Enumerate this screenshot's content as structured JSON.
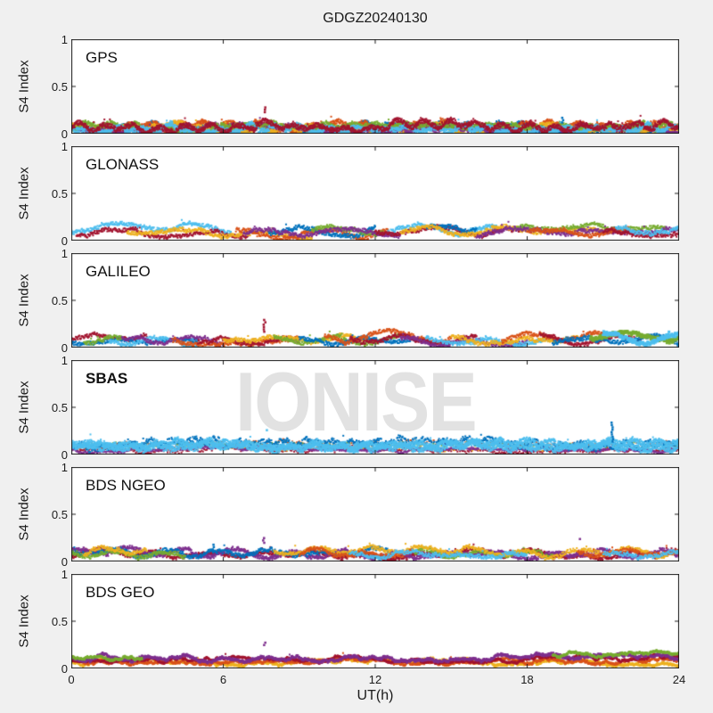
{
  "watermark": "IONISE",
  "colors": {
    "blue": "#0072BD",
    "orange": "#D95319",
    "yellow": "#EDB120",
    "purple": "#7E2F8E",
    "green": "#77AC30",
    "lightblue": "#4DBEEE",
    "darkred": "#A2142F",
    "figure_background": "#f0f0f0",
    "panel_background": "#ffffff",
    "axis": "#1a1a1a",
    "watermark_color": "#e2e2e2"
  },
  "chart_data": {
    "type": "scatter",
    "title": "GDGZ20240130",
    "xlabel": "UT(h)",
    "ylabel": "S4 Index",
    "xlim": [
      0,
      24
    ],
    "ylim": [
      0,
      1
    ],
    "xticks": [
      0,
      6,
      12,
      18,
      24
    ],
    "xtick_labels": [
      "0",
      "6",
      "12",
      "18",
      "24"
    ],
    "yticks": [
      0,
      0.5,
      1
    ],
    "ytick_labels": [
      "1",
      "0.5",
      "0"
    ],
    "grid": false,
    "legend": "none",
    "panels": [
      {
        "label": "GPS",
        "bold": false,
        "series": [
          {
            "c": "blue",
            "r": [
              0,
              24
            ],
            "b": 0.06,
            "a": 0.02,
            "j": 0.05,
            "st": 0.012,
            "f": 6
          },
          {
            "c": "orange",
            "r": [
              0,
              24
            ],
            "b": 0.07,
            "a": 0.025,
            "j": 0.05,
            "st": 0.012,
            "f": 6
          },
          {
            "c": "yellow",
            "r": [
              0,
              24
            ],
            "b": 0.065,
            "a": 0.02,
            "j": 0.05,
            "st": 0.012,
            "f": 6
          },
          {
            "c": "purple",
            "r": [
              0,
              24
            ],
            "b": 0.05,
            "a": 0.015,
            "j": 0.04,
            "st": 0.014,
            "f": 6
          },
          {
            "c": "green",
            "r": [
              0,
              24
            ],
            "b": 0.06,
            "a": 0.02,
            "j": 0.05,
            "st": 0.014,
            "f": 6
          },
          {
            "c": "lightblue",
            "r": [
              0,
              24
            ],
            "b": 0.055,
            "a": 0.02,
            "j": 0.05,
            "st": 0.012,
            "f": 6
          },
          {
            "c": "darkred",
            "r": [
              0,
              24
            ],
            "b": 0.075,
            "a": 0.03,
            "j": 0.05,
            "st": 0.012,
            "f": 6,
            "pk": 0.015
          }
        ],
        "spikes": [
          {
            "h": 7.62,
            "v": [
              0.23,
              0.28
            ],
            "c": "darkred"
          },
          {
            "h": 19.4,
            "v": [
              0.12,
              0.17
            ],
            "c": "blue"
          }
        ]
      },
      {
        "label": "GLONASS",
        "bold": false,
        "series": [
          {
            "c": "lightblue",
            "r": [
              0,
              6.3
            ],
            "b": 0.13,
            "a": 0.035,
            "f": 2.0
          },
          {
            "c": "darkred",
            "r": [
              0.2,
              7
            ],
            "b": 0.08,
            "a": 0.03,
            "f": 2.0
          },
          {
            "c": "yellow",
            "r": [
              2.2,
              9.5
            ],
            "b": 0.075,
            "a": 0.03,
            "f": 2.0
          },
          {
            "c": "orange",
            "r": [
              6.5,
              12.5
            ],
            "b": 0.08,
            "a": 0.035,
            "f": 2.0
          },
          {
            "c": "blue",
            "r": [
              7.8,
              12
            ],
            "b": 0.11,
            "a": 0.03,
            "f": 2.2
          },
          {
            "c": "green",
            "r": [
              9.5,
              12.3
            ],
            "b": 0.13,
            "a": 0.03,
            "f": 2.2
          },
          {
            "c": "purple",
            "r": [
              6.8,
              13
            ],
            "b": 0.07,
            "a": 0.025,
            "f": 2.0
          },
          {
            "c": "lightblue",
            "r": [
              12.5,
              16.8
            ],
            "b": 0.11,
            "a": 0.04,
            "f": 2.0
          },
          {
            "c": "darkred",
            "r": [
              12,
              18
            ],
            "b": 0.08,
            "a": 0.03,
            "f": 2.0
          },
          {
            "c": "blue",
            "r": [
              14,
              16
            ],
            "b": 0.12,
            "a": 0.03,
            "f": 2.2
          },
          {
            "c": "yellow",
            "r": [
              13,
              21
            ],
            "b": 0.09,
            "a": 0.035,
            "f": 2.0
          },
          {
            "c": "green",
            "r": [
              17.5,
              23.5
            ],
            "b": 0.12,
            "a": 0.03,
            "f": 2.0
          },
          {
            "c": "purple",
            "r": [
              16,
              24
            ],
            "b": 0.08,
            "a": 0.03,
            "f": 2.0
          },
          {
            "c": "orange",
            "r": [
              18,
              22
            ],
            "b": 0.09,
            "a": 0.03,
            "f": 2.0
          },
          {
            "c": "darkred",
            "r": [
              21,
              24
            ],
            "b": 0.09,
            "a": 0.03,
            "f": 2.0
          },
          {
            "c": "lightblue",
            "r": [
              21.5,
              24
            ],
            "b": 0.11,
            "a": 0.03,
            "f": 2.0
          }
        ],
        "spikes": []
      },
      {
        "label": "GALILEO",
        "bold": false,
        "series": [
          {
            "c": "darkred",
            "r": [
              0,
              3
            ],
            "b": 0.09,
            "a": 0.025,
            "f": 2.5
          },
          {
            "c": "blue",
            "r": [
              0,
              5
            ],
            "b": 0.06,
            "a": 0.02,
            "f": 2.5
          },
          {
            "c": "green",
            "r": [
              0.5,
              2
            ],
            "b": 0.07,
            "a": 0.02,
            "f": 2.5
          },
          {
            "c": "lightblue",
            "r": [
              1.5,
              5
            ],
            "b": 0.08,
            "a": 0.04,
            "f": 2.2
          },
          {
            "c": "purple",
            "r": [
              2,
              6
            ],
            "b": 0.07,
            "a": 0.025,
            "f": 2.5
          },
          {
            "c": "orange",
            "r": [
              4,
              9
            ],
            "b": 0.06,
            "a": 0.02,
            "f": 2.5
          },
          {
            "c": "darkred",
            "r": [
              5,
              9
            ],
            "b": 0.07,
            "a": 0.025,
            "f": 2.5
          },
          {
            "c": "yellow",
            "r": [
              6,
              12
            ],
            "b": 0.07,
            "a": 0.025,
            "f": 2.5
          },
          {
            "c": "green",
            "r": [
              8,
              13
            ],
            "b": 0.1,
            "a": 0.04,
            "f": 2.2
          },
          {
            "c": "blue",
            "r": [
              9,
              14
            ],
            "b": 0.07,
            "a": 0.025,
            "f": 2.5
          },
          {
            "c": "orange",
            "r": [
              10,
              15
            ],
            "b": 0.1,
            "a": 0.05,
            "f": 2.0
          },
          {
            "c": "darkred",
            "r": [
              11,
              16
            ],
            "b": 0.09,
            "a": 0.035,
            "f": 2.2
          },
          {
            "c": "purple",
            "r": [
              13,
              18
            ],
            "b": 0.08,
            "a": 0.03,
            "f": 2.5
          },
          {
            "c": "lightblue",
            "r": [
              14,
              19
            ],
            "b": 0.08,
            "a": 0.03,
            "f": 2.5
          },
          {
            "c": "yellow",
            "r": [
              15,
              20
            ],
            "b": 0.08,
            "a": 0.03,
            "f": 2.5
          },
          {
            "c": "orange",
            "r": [
              17,
              21
            ],
            "b": 0.09,
            "a": 0.03,
            "f": 2.5
          },
          {
            "c": "darkred",
            "r": [
              18.5,
              22.5
            ],
            "b": 0.1,
            "a": 0.05,
            "f": 2.0
          },
          {
            "c": "blue",
            "r": [
              19,
              24
            ],
            "b": 0.07,
            "a": 0.025,
            "f": 2.5
          },
          {
            "c": "green",
            "r": [
              20.5,
              24
            ],
            "b": 0.13,
            "a": 0.03,
            "f": 2.2,
            "sz": 3
          },
          {
            "c": "lightblue",
            "r": [
              21,
              24
            ],
            "b": 0.12,
            "a": 0.04,
            "f": 2.2,
            "sz": 3
          }
        ],
        "spikes": [
          {
            "h": 7.62,
            "v": [
              0.17,
              0.3
            ],
            "c": "darkred"
          }
        ]
      },
      {
        "label": "SBAS",
        "bold": true,
        "series": [
          {
            "c": "darkred",
            "r": [
              0,
              24
            ],
            "b": 0.06,
            "a": 0.01,
            "j": 0.03,
            "st": 0.05
          },
          {
            "c": "orange",
            "r": [
              0,
              24
            ],
            "b": 0.09,
            "a": 0.01,
            "j": 0.05,
            "st": 0.09
          },
          {
            "c": "green",
            "r": [
              0,
              24
            ],
            "b": 0.09,
            "a": 0.01,
            "j": 0.05,
            "st": 0.11
          },
          {
            "c": "yellow",
            "r": [
              3,
              20
            ],
            "b": 0.08,
            "a": 0.01,
            "j": 0.04,
            "st": 0.12
          },
          {
            "c": "purple",
            "r": [
              0,
              24
            ],
            "b": 0.05,
            "a": 0.01,
            "j": 0.02,
            "st": 0.03
          },
          {
            "c": "blue",
            "r": [
              0,
              24
            ],
            "b": 0.11,
            "a": 0.02,
            "j": 0.07,
            "st": 0.02,
            "f": 7
          },
          {
            "c": "lightblue",
            "r": [
              0,
              24
            ],
            "b": 0.1,
            "a": 0.02,
            "j": 0.06,
            "st": 0.012,
            "f": 7
          },
          {
            "c": "lightblue",
            "r": [
              0,
              24
            ],
            "b": 0.095,
            "a": 0.02,
            "j": 0.06,
            "st": 0.012,
            "f": 6
          }
        ],
        "spikes": [
          {
            "h": 21.35,
            "v": [
              0.14,
              0.35
            ],
            "c": "blue"
          },
          {
            "h": 7.7,
            "v": [
              0.26,
              0.28
            ],
            "c": "lightblue"
          }
        ]
      },
      {
        "label": "BDS NGEO",
        "bold": false,
        "series": [
          {
            "c": "darkred",
            "r": [
              0,
              24
            ],
            "b": 0.075,
            "a": 0.025,
            "j": 0.04,
            "st": 0.015,
            "f": 3
          },
          {
            "c": "purple",
            "r": [
              0,
              24
            ],
            "b": 0.09,
            "a": 0.03,
            "j": 0.04,
            "st": 0.015,
            "f": 3
          },
          {
            "c": "blue",
            "r": [
              0,
              12.5
            ],
            "b": 0.08,
            "a": 0.03,
            "j": 0.04,
            "f": 3
          },
          {
            "c": "green",
            "r": [
              0,
              4.5
            ],
            "b": 0.1,
            "a": 0.03,
            "j": 0.04,
            "f": 3
          },
          {
            "c": "green",
            "r": [
              13.5,
              19
            ],
            "b": 0.1,
            "a": 0.03,
            "j": 0.04,
            "f": 3
          },
          {
            "c": "yellow",
            "r": [
              0.5,
              3
            ],
            "b": 0.09,
            "a": 0.025,
            "j": 0.04,
            "f": 3
          },
          {
            "c": "yellow",
            "r": [
              8,
              24
            ],
            "b": 0.095,
            "a": 0.03,
            "j": 0.04,
            "f": 3
          },
          {
            "c": "orange",
            "r": [
              9,
              13.5
            ],
            "b": 0.08,
            "a": 0.025,
            "j": 0.04,
            "f": 3
          },
          {
            "c": "orange",
            "r": [
              20,
              24
            ],
            "b": 0.09,
            "a": 0.025,
            "j": 0.04,
            "f": 3
          },
          {
            "c": "lightblue",
            "r": [
              11,
              18
            ],
            "b": 0.075,
            "a": 0.025,
            "j": 0.04,
            "f": 3
          },
          {
            "c": "lightblue",
            "r": [
              21,
              24
            ],
            "b": 0.09,
            "a": 0.025,
            "j": 0.04,
            "f": 3
          }
        ],
        "spikes": [
          {
            "h": 5.6,
            "v": [
              0.13,
              0.2
            ],
            "c": "blue"
          },
          {
            "h": 7.6,
            "v": [
              0.2,
              0.27
            ],
            "c": "purple"
          },
          {
            "h": 20.1,
            "v": [
              0.24,
              0.26
            ],
            "c": "purple"
          }
        ]
      },
      {
        "label": "BDS GEO",
        "bold": false,
        "series": [
          {
            "c": "yellow",
            "r": [
              0,
              24
            ],
            "b": 0.065,
            "a": 0.008,
            "j": 0.02,
            "st": 0.01,
            "f": 4,
            "pk": 0.002
          },
          {
            "c": "orange",
            "r": [
              0,
              24
            ],
            "b": 0.085,
            "a": 0.008,
            "j": 0.02,
            "st": 0.01,
            "f": 4,
            "pk": 0.002
          },
          {
            "c": "darkred",
            "r": [
              0,
              24
            ],
            "b": 0.1,
            "a": 0.008,
            "j": 0.015,
            "st": 0.01,
            "f": 4,
            "pk": 0.002
          },
          {
            "c": "purple",
            "r": [
              0,
              24
            ],
            "b": 0.115,
            "a": 0.012,
            "j": 0.025,
            "st": 0.01,
            "f": 4,
            "pk": 0.004
          },
          {
            "c": "green",
            "r": [
              0,
              2.8
            ],
            "b": 0.13,
            "a": 0.01,
            "j": 0.02,
            "st": 0.01,
            "f": 4,
            "pk": 0.002
          },
          {
            "c": "green",
            "r": [
              19,
              24
            ],
            "b": 0.14,
            "a": 0.012,
            "j": 0.02,
            "st": 0.01,
            "f": 4,
            "pk": 0.002
          }
        ],
        "spikes": [
          {
            "h": 7.62,
            "v": [
              0.25,
              0.28
            ],
            "c": "purple"
          }
        ]
      }
    ]
  }
}
